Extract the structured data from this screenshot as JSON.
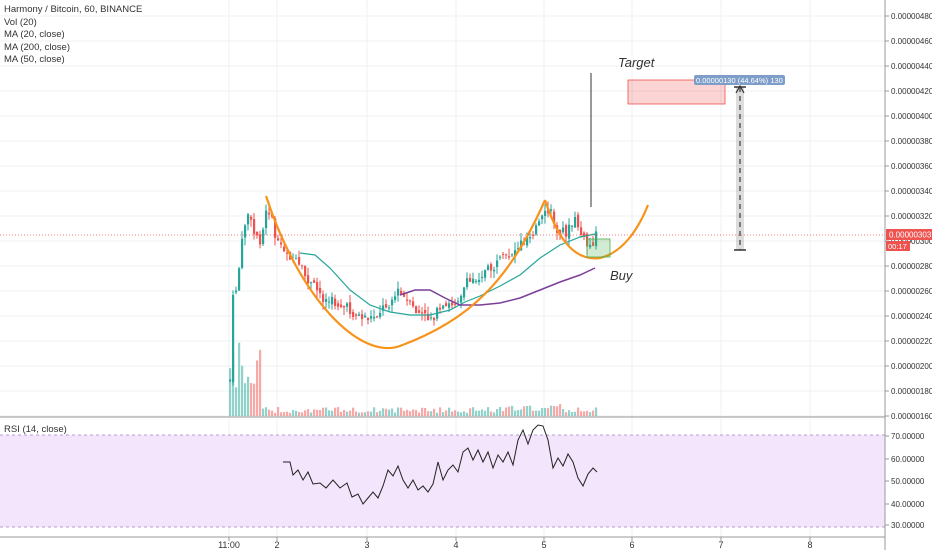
{
  "legend": {
    "title": "Harmony / Bitcoin, 60, BINANCE",
    "vol": "Vol (20)",
    "ma20": "MA (20, close)",
    "ma200": "MA (200, close)",
    "ma50": "MA (50, close)"
  },
  "rsi": {
    "label": "RSI (14, close)",
    "ticks": [
      "70.00000",
      "60.00000",
      "50.00000",
      "40.00000",
      "30.00000"
    ]
  },
  "price_axis": {
    "ticks": [
      "0.00000480",
      "0.00000460",
      "0.00000440",
      "0.00000420",
      "0.00000400",
      "0.00000380",
      "0.00000360",
      "0.00000340",
      "0.00000320",
      "0.00000300",
      "0.00000280",
      "0.00000260",
      "0.00000240",
      "0.00000220",
      "0.00000200",
      "0.00000180",
      "0.00000160"
    ],
    "current_price": "0.00000303",
    "countdown": "00:17"
  },
  "time_axis": {
    "labels": [
      "11:00",
      "2",
      "3",
      "4",
      "5",
      "6",
      "7",
      "8"
    ]
  },
  "annotations": {
    "target": "Target",
    "buy": "Buy",
    "measure_label": "0.00000130 (44.64%) 130"
  },
  "colors": {
    "up": "#26a69a",
    "down": "#ef5350",
    "ma20": "#26a69a",
    "ma50": "#7b3f98",
    "cup": "#f7931a",
    "rsi_fill": "#f3e5fb",
    "current_line": "#ef5350"
  },
  "chart_data": {
    "type": "candlestick",
    "title": "Harmony / Bitcoin, 60, BINANCE",
    "ylim": [
      1.6e-06,
      4.9e-06
    ],
    "rsi": {
      "name": "RSI (14, close)",
      "ylim": [
        28,
        77
      ],
      "upper": 70,
      "lower": 30
    }
  }
}
